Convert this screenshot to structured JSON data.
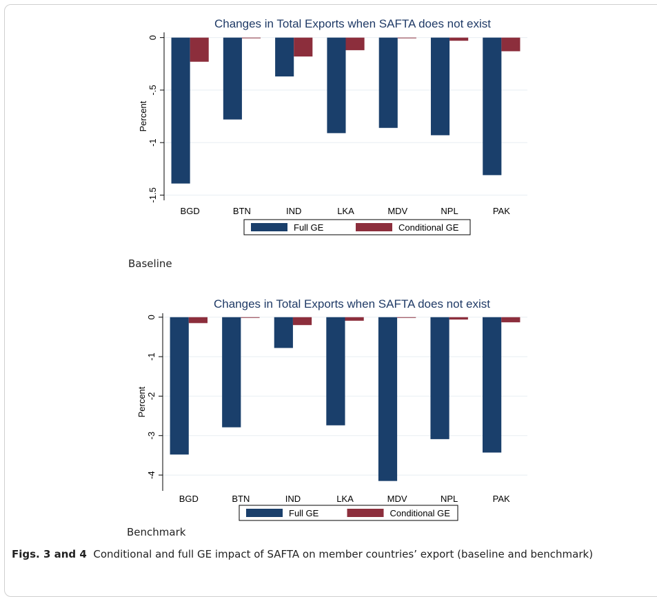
{
  "chart_data": [
    {
      "type": "bar",
      "title": "Changes in Total Exports when SAFTA does not exist",
      "xlabel": "",
      "ylabel": "Percent",
      "categories": [
        "BGD",
        "BTN",
        "IND",
        "LKA",
        "MDV",
        "NPL",
        "PAK"
      ],
      "series": [
        {
          "name": "Full GE",
          "color": "#1a3f6b",
          "values": [
            -1.39,
            -0.78,
            -0.37,
            -0.91,
            -0.86,
            -0.93,
            -1.31
          ]
        },
        {
          "name": "Conditional GE",
          "color": "#8c2e3c",
          "values": [
            -0.23,
            -0.005,
            -0.18,
            -0.12,
            -0.005,
            -0.03,
            -0.13
          ]
        }
      ],
      "ylim": [
        -1.55,
        0.05
      ],
      "yticks": [
        0,
        -0.5,
        -1,
        -1.5
      ],
      "ytick_labels": [
        "0",
        "-.5",
        "-1",
        "-1.5"
      ],
      "grid": true,
      "legend": "bottom"
    },
    {
      "type": "bar",
      "title": "Changes in Total Exports when SAFTA does not exist",
      "xlabel": "",
      "ylabel": "Percent",
      "categories": [
        "BGD",
        "BTN",
        "IND",
        "LKA",
        "MDV",
        "NPL",
        "PAK"
      ],
      "series": [
        {
          "name": "Full GE",
          "color": "#1a3f6b",
          "values": [
            -3.48,
            -2.79,
            -0.78,
            -2.74,
            -4.15,
            -3.09,
            -3.43
          ]
        },
        {
          "name": "Conditional GE",
          "color": "#8c2e3c",
          "values": [
            -0.15,
            -0.01,
            -0.2,
            -0.09,
            -0.01,
            -0.06,
            -0.13
          ]
        }
      ],
      "ylim": [
        -4.4,
        0.1
      ],
      "yticks": [
        0,
        -1,
        -2,
        -3,
        -4
      ],
      "ytick_labels": [
        "0",
        "-1",
        "-2",
        "-3",
        "-4"
      ],
      "grid": true,
      "legend": "bottom"
    }
  ],
  "labels": {
    "baseline": "Baseline",
    "benchmark": "Benchmark"
  },
  "caption": {
    "label": "Figs. 3 and 4",
    "text": "Conditional and full GE impact of SAFTA on member countries’ export (baseline and benchmark)"
  }
}
